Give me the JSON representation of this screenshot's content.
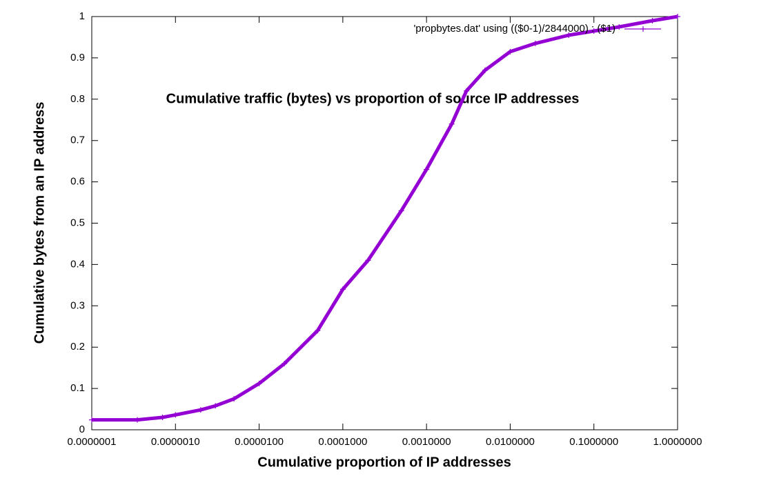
{
  "chart_data": {
    "type": "line",
    "title": "Cumulative traffic (bytes) vs proportion of source IP addresses",
    "x_label": "Cumulative proportion of IP addresses",
    "y_label": "Cumulative bytes from an IP address",
    "x_log_scale": true,
    "legend_position": "top-right",
    "x": [
      1e-07,
      3.5e-07,
      7e-07,
      1e-06,
      2e-06,
      3e-06,
      5e-06,
      1e-05,
      2e-05,
      5e-05,
      0.0001,
      0.0002,
      0.0005,
      0.001,
      0.002,
      0.003,
      0.005,
      0.01,
      0.02,
      0.05,
      0.1,
      0.2,
      0.5,
      1
    ],
    "series": [
      {
        "name": "'propbytes.dat' using (($0-1)/2844000) : ($1)",
        "color": "#9400d3",
        "values": [
          0.024,
          0.024,
          0.03,
          0.036,
          0.048,
          0.058,
          0.075,
          0.112,
          0.16,
          0.24,
          0.34,
          0.41,
          0.53,
          0.63,
          0.74,
          0.82,
          0.87,
          0.915,
          0.935,
          0.955,
          0.965,
          0.975,
          0.99,
          1
        ]
      }
    ],
    "xlim": [
      1e-07,
      1
    ],
    "ylim": [
      0,
      1
    ],
    "xticks": [
      {
        "value": 1e-07,
        "label": "0.0000001"
      },
      {
        "value": 1e-06,
        "label": "0.0000010"
      },
      {
        "value": 1e-05,
        "label": "0.0000100"
      },
      {
        "value": 0.0001,
        "label": "0.0001000"
      },
      {
        "value": 0.001,
        "label": "0.0010000"
      },
      {
        "value": 0.01,
        "label": "0.0100000"
      },
      {
        "value": 0.1,
        "label": "0.1000000"
      },
      {
        "value": 1,
        "label": "1.0000000"
      }
    ],
    "yticks": [
      0,
      0.1,
      0.2,
      0.3,
      0.4,
      0.5,
      0.6,
      0.7,
      0.8,
      0.9,
      1
    ]
  }
}
